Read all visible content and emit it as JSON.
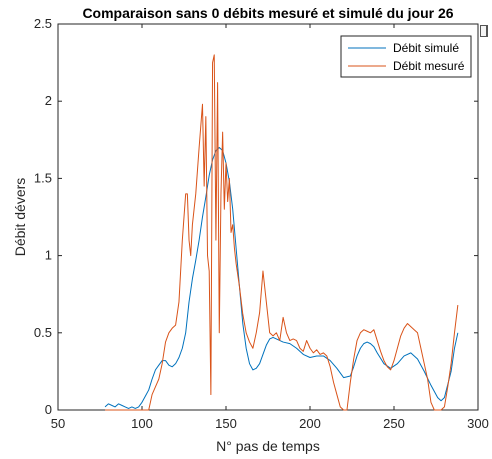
{
  "chart_data": {
    "type": "line",
    "title": "Comparaison sans 0 débits mesuré et simulé du jour 26",
    "xlabel": "N° pas de temps",
    "ylabel": "Débit dévers",
    "xlim": [
      50,
      300
    ],
    "ylim": [
      0,
      2.5
    ],
    "xticks": [
      50,
      100,
      150,
      200,
      250,
      300
    ],
    "yticks": [
      0,
      0.5,
      1,
      1.5,
      2,
      2.5
    ],
    "xtick_labels": [
      "50",
      "100",
      "150",
      "200",
      "250",
      "300"
    ],
    "ytick_labels": [
      "0",
      "0.5",
      "1",
      "1.5",
      "2",
      "2.5"
    ],
    "grid": false,
    "legend_position": "top-right",
    "series": [
      {
        "name": "Débit simulé",
        "color": "#0072BD",
        "points": [
          [
            78,
            0.02
          ],
          [
            80,
            0.04
          ],
          [
            82,
            0.03
          ],
          [
            84,
            0.02
          ],
          [
            86,
            0.04
          ],
          [
            88,
            0.03
          ],
          [
            90,
            0.02
          ],
          [
            92,
            0.01
          ],
          [
            94,
            0.02
          ],
          [
            96,
            0.01
          ],
          [
            98,
            0.02
          ],
          [
            100,
            0.05
          ],
          [
            102,
            0.09
          ],
          [
            104,
            0.13
          ],
          [
            106,
            0.2
          ],
          [
            108,
            0.26
          ],
          [
            110,
            0.29
          ],
          [
            112,
            0.32
          ],
          [
            114,
            0.32
          ],
          [
            116,
            0.29
          ],
          [
            118,
            0.28
          ],
          [
            120,
            0.3
          ],
          [
            122,
            0.34
          ],
          [
            124,
            0.4
          ],
          [
            126,
            0.5
          ],
          [
            128,
            0.7
          ],
          [
            130,
            0.85
          ],
          [
            132,
            0.97
          ],
          [
            134,
            1.1
          ],
          [
            136,
            1.25
          ],
          [
            138,
            1.38
          ],
          [
            140,
            1.52
          ],
          [
            142,
            1.62
          ],
          [
            144,
            1.68
          ],
          [
            146,
            1.7
          ],
          [
            148,
            1.68
          ],
          [
            150,
            1.6
          ],
          [
            152,
            1.48
          ],
          [
            154,
            1.3
          ],
          [
            156,
            1.05
          ],
          [
            158,
            0.8
          ],
          [
            160,
            0.56
          ],
          [
            162,
            0.4
          ],
          [
            164,
            0.3
          ],
          [
            166,
            0.26
          ],
          [
            168,
            0.27
          ],
          [
            170,
            0.3
          ],
          [
            172,
            0.36
          ],
          [
            174,
            0.42
          ],
          [
            176,
            0.46
          ],
          [
            178,
            0.47
          ],
          [
            180,
            0.46
          ],
          [
            184,
            0.44
          ],
          [
            188,
            0.43
          ],
          [
            192,
            0.4
          ],
          [
            196,
            0.36
          ],
          [
            200,
            0.34
          ],
          [
            204,
            0.35
          ],
          [
            208,
            0.35
          ],
          [
            212,
            0.32
          ],
          [
            216,
            0.27
          ],
          [
            220,
            0.21
          ],
          [
            224,
            0.22
          ],
          [
            226,
            0.28
          ],
          [
            228,
            0.35
          ],
          [
            230,
            0.4
          ],
          [
            232,
            0.43
          ],
          [
            234,
            0.44
          ],
          [
            236,
            0.43
          ],
          [
            238,
            0.41
          ],
          [
            240,
            0.37
          ],
          [
            244,
            0.3
          ],
          [
            248,
            0.27
          ],
          [
            252,
            0.3
          ],
          [
            256,
            0.35
          ],
          [
            260,
            0.37
          ],
          [
            264,
            0.33
          ],
          [
            268,
            0.25
          ],
          [
            272,
            0.16
          ],
          [
            276,
            0.08
          ],
          [
            278,
            0.06
          ],
          [
            280,
            0.08
          ],
          [
            284,
            0.25
          ],
          [
            286,
            0.4
          ],
          [
            288,
            0.5
          ]
        ]
      },
      {
        "name": "Débit mesuré",
        "color": "#D95319",
        "points": [
          [
            78,
            0.0
          ],
          [
            100,
            0.0
          ],
          [
            104,
            0.0
          ],
          [
            106,
            0.1
          ],
          [
            108,
            0.15
          ],
          [
            110,
            0.2
          ],
          [
            112,
            0.3
          ],
          [
            114,
            0.44
          ],
          [
            116,
            0.5
          ],
          [
            118,
            0.53
          ],
          [
            120,
            0.55
          ],
          [
            122,
            0.7
          ],
          [
            124,
            1.1
          ],
          [
            126,
            1.4
          ],
          [
            127,
            1.4
          ],
          [
            128,
            1.1
          ],
          [
            129,
            1.0
          ],
          [
            130,
            1.2
          ],
          [
            132,
            1.4
          ],
          [
            134,
            1.7
          ],
          [
            136,
            1.98
          ],
          [
            137,
            1.45
          ],
          [
            138,
            1.9
          ],
          [
            139,
            1.0
          ],
          [
            140,
            0.9
          ],
          [
            141,
            0.1
          ],
          [
            142,
            2.25
          ],
          [
            143,
            2.3
          ],
          [
            144,
            1.1
          ],
          [
            145,
            2.12
          ],
          [
            146,
            0.5
          ],
          [
            147,
            1.4
          ],
          [
            148,
            1.8
          ],
          [
            149,
            1.3
          ],
          [
            150,
            1.6
          ],
          [
            151,
            1.35
          ],
          [
            152,
            1.5
          ],
          [
            153,
            1.15
          ],
          [
            154,
            1.2
          ],
          [
            155,
            1.05
          ],
          [
            156,
            0.95
          ],
          [
            158,
            0.8
          ],
          [
            160,
            0.62
          ],
          [
            162,
            0.5
          ],
          [
            164,
            0.44
          ],
          [
            166,
            0.4
          ],
          [
            168,
            0.5
          ],
          [
            170,
            0.63
          ],
          [
            172,
            0.9
          ],
          [
            174,
            0.7
          ],
          [
            176,
            0.5
          ],
          [
            178,
            0.48
          ],
          [
            180,
            0.5
          ],
          [
            182,
            0.45
          ],
          [
            184,
            0.6
          ],
          [
            186,
            0.5
          ],
          [
            188,
            0.45
          ],
          [
            190,
            0.46
          ],
          [
            192,
            0.45
          ],
          [
            194,
            0.4
          ],
          [
            196,
            0.38
          ],
          [
            198,
            0.45
          ],
          [
            200,
            0.4
          ],
          [
            202,
            0.37
          ],
          [
            204,
            0.39
          ],
          [
            206,
            0.36
          ],
          [
            208,
            0.37
          ],
          [
            210,
            0.35
          ],
          [
            212,
            0.28
          ],
          [
            214,
            0.18
          ],
          [
            216,
            0.1
          ],
          [
            218,
            0.02
          ],
          [
            220,
            0.0
          ],
          [
            222,
            0.0
          ],
          [
            224,
            0.18
          ],
          [
            226,
            0.33
          ],
          [
            228,
            0.45
          ],
          [
            230,
            0.5
          ],
          [
            232,
            0.52
          ],
          [
            234,
            0.51
          ],
          [
            236,
            0.5
          ],
          [
            238,
            0.52
          ],
          [
            240,
            0.45
          ],
          [
            242,
            0.38
          ],
          [
            244,
            0.32
          ],
          [
            246,
            0.28
          ],
          [
            248,
            0.26
          ],
          [
            250,
            0.32
          ],
          [
            252,
            0.4
          ],
          [
            254,
            0.48
          ],
          [
            256,
            0.53
          ],
          [
            258,
            0.56
          ],
          [
            260,
            0.54
          ],
          [
            262,
            0.52
          ],
          [
            264,
            0.5
          ],
          [
            266,
            0.4
          ],
          [
            268,
            0.3
          ],
          [
            270,
            0.2
          ],
          [
            272,
            0.05
          ],
          [
            274,
            0.0
          ],
          [
            276,
            0.0
          ],
          [
            278,
            0.0
          ],
          [
            280,
            0.02
          ],
          [
            282,
            0.15
          ],
          [
            284,
            0.3
          ],
          [
            286,
            0.5
          ],
          [
            288,
            0.68
          ]
        ]
      }
    ]
  }
}
